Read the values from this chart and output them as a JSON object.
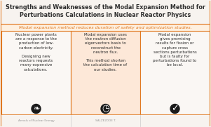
{
  "title_line1": "Strengths and Weaknesses of the Modal Expansion Method for",
  "title_line2": "Perturbations Calculations in Nuclear Reactor Physics",
  "subtitle": "Modal expansion method reduces duration of safety and optimization studies.",
  "bg_color": "#f7f3ef",
  "title_color": "#2d2d2d",
  "subtitle_color": "#e07820",
  "border_color": "#e07820",
  "panel_bg_left": "#faf7f4",
  "panel_bg_center": "#fde8d8",
  "panel_bg_right": "#faf7f4",
  "col1_text": "Nuclear power plants\nare a response to the\nproduction of low-\ncarbon electricity.\n\nDesigning new\nreactors requests\nmany expensive\ncalculations.",
  "col2_text": "Modal expansion uses\nthe neutron diffusion\neigenvectors basis to\nreconstruct the\nneutron flux.\n\nThis method shorten\nthe calculation time of\nour studies.",
  "col3_text": "Modal expansion\ngives promising\nresults for fission or\ncapture cross\nsections perturbations\nbut is faulty for\nperturbations found to\nbe local.",
  "footer_left": "Annals of Nuclear Energy",
  "footer_center": "SALZE2DOE T.",
  "footer_right": "",
  "footer_color": "#999999",
  "text_color": "#2d2d2d",
  "icon_bg": "#1a1a1a",
  "title_fontsize": 5.8,
  "subtitle_fontsize": 4.5,
  "body_fontsize": 4.0,
  "footer_fontsize": 3.0
}
